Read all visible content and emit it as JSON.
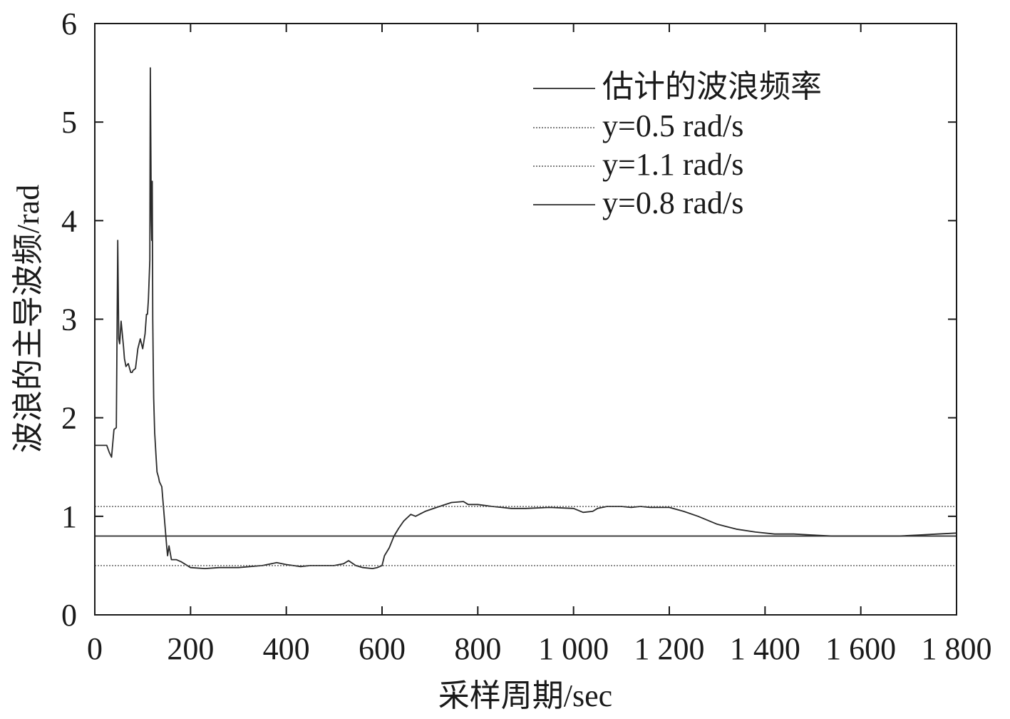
{
  "chart_data": {
    "type": "line",
    "xlabel": "采样周期/sec",
    "ylabel": "波浪的主导波频/rad",
    "xlim": [
      0,
      1800
    ],
    "ylim": [
      0,
      6
    ],
    "grid": false,
    "legend_position": "top-right",
    "x_ticks": [
      0,
      200,
      400,
      600,
      800,
      1000,
      1200,
      1400,
      1600,
      1800
    ],
    "x_tick_labels": [
      "0",
      "200",
      "400",
      "600",
      "800",
      "1 000",
      "1 200",
      "1 400",
      "1 600",
      "1 800"
    ],
    "y_ticks": [
      0,
      1,
      2,
      3,
      4,
      5,
      6
    ],
    "y_tick_labels": [
      "0",
      "1",
      "2",
      "3",
      "4",
      "5",
      "6"
    ],
    "series": [
      {
        "name": "估计的波浪频率",
        "style": "solid",
        "color": "#2a2a2a",
        "x": [
          0,
          15,
          25,
          30,
          35,
          40,
          45,
          48,
          50,
          52,
          55,
          60,
          62,
          65,
          70,
          75,
          78,
          80,
          85,
          90,
          95,
          100,
          105,
          108,
          110,
          112,
          115,
          116,
          118,
          119,
          120,
          121,
          122,
          123,
          125,
          128,
          130,
          133,
          135,
          140,
          145,
          150,
          152,
          155,
          160,
          165,
          170,
          180,
          200,
          230,
          260,
          300,
          350,
          380,
          400,
          430,
          450,
          500,
          520,
          530,
          545,
          560,
          580,
          590,
          600,
          605,
          615,
          625,
          635,
          645,
          660,
          670,
          690,
          720,
          745,
          770,
          780,
          800,
          830,
          850,
          870,
          900,
          950,
          1000,
          1020,
          1040,
          1050,
          1070,
          1100,
          1120,
          1140,
          1160,
          1180,
          1200,
          1230,
          1260,
          1300,
          1340,
          1380,
          1420,
          1460,
          1500,
          1540,
          1580,
          1620,
          1680,
          1720,
          1760,
          1800
        ],
        "values": [
          1.72,
          1.72,
          1.72,
          1.65,
          1.6,
          1.88,
          1.9,
          3.8,
          2.8,
          2.75,
          2.98,
          2.72,
          2.6,
          2.52,
          2.55,
          2.46,
          2.46,
          2.48,
          2.5,
          2.7,
          2.8,
          2.7,
          2.85,
          3.05,
          3.05,
          3.2,
          3.6,
          5.55,
          4.0,
          3.8,
          4.4,
          3.0,
          2.6,
          2.2,
          1.85,
          1.6,
          1.45,
          1.4,
          1.35,
          1.3,
          1.0,
          0.7,
          0.6,
          0.7,
          0.56,
          0.56,
          0.56,
          0.54,
          0.48,
          0.47,
          0.48,
          0.48,
          0.5,
          0.53,
          0.51,
          0.49,
          0.5,
          0.5,
          0.52,
          0.55,
          0.5,
          0.48,
          0.47,
          0.48,
          0.5,
          0.6,
          0.68,
          0.8,
          0.88,
          0.95,
          1.02,
          1.0,
          1.05,
          1.1,
          1.14,
          1.15,
          1.12,
          1.12,
          1.1,
          1.09,
          1.08,
          1.08,
          1.09,
          1.08,
          1.04,
          1.05,
          1.08,
          1.1,
          1.1,
          1.09,
          1.1,
          1.09,
          1.09,
          1.09,
          1.05,
          1.0,
          0.92,
          0.87,
          0.84,
          0.82,
          0.82,
          0.81,
          0.8,
          0.8,
          0.8,
          0.8,
          0.81,
          0.82,
          0.83
        ]
      },
      {
        "name": "y=0.5 rad/s",
        "style": "dotted",
        "color": "#555555",
        "constant": 0.5
      },
      {
        "name": "y=1.1 rad/s",
        "style": "dotted",
        "color": "#555555",
        "constant": 1.1
      },
      {
        "name": "y=0.8 rad/s",
        "style": "solid",
        "color": "#2a2a2a",
        "constant": 0.8
      }
    ]
  }
}
